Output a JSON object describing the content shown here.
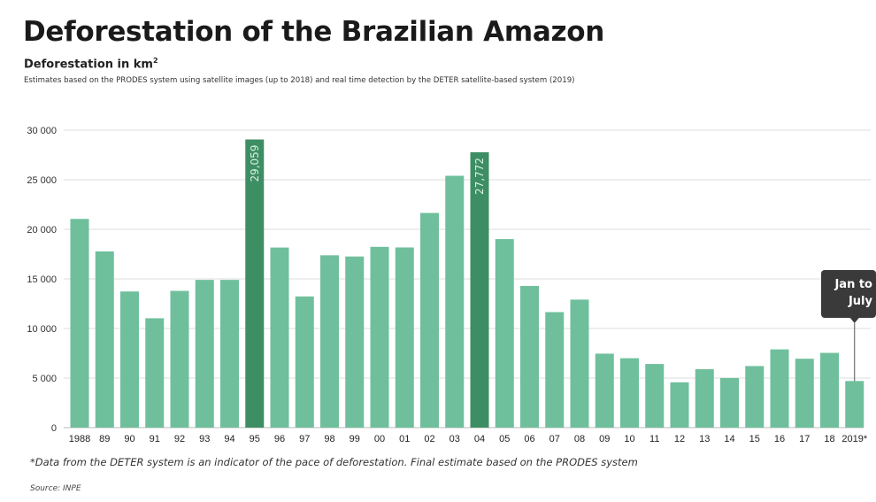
{
  "title": "Deforestation of the Brazilian Amazon",
  "subtitle": "Deforestation in km",
  "subtitle_unit_sup": "2",
  "description": "Estimates based on the PRODES system using satellite images (up to 2018) and real time detection by the DETER satellite-based system (2019)",
  "footnote": "*Data from the DETER system is an indicator of the pace of deforestation. Final estimate based on the PRODES system",
  "source": "Source: INPE",
  "colors": {
    "bar": "#6fbf9c",
    "highlight": "#3e8e63",
    "grid": "#dddddd",
    "callout_bg": "#3a3a3a"
  },
  "chart_data": {
    "type": "bar",
    "categories": [
      "1988",
      "89",
      "90",
      "91",
      "92",
      "93",
      "94",
      "95",
      "96",
      "97",
      "98",
      "99",
      "00",
      "01",
      "02",
      "03",
      "04",
      "05",
      "06",
      "07",
      "08",
      "09",
      "10",
      "11",
      "12",
      "13",
      "14",
      "15",
      "16",
      "17",
      "18",
      "2019*"
    ],
    "values": [
      21050,
      17770,
      13730,
      11030,
      13790,
      14900,
      14900,
      29059,
      18160,
      13230,
      17380,
      17260,
      18230,
      18170,
      21650,
      25400,
      27772,
      19010,
      14290,
      11650,
      12910,
      7460,
      7000,
      6420,
      4570,
      5890,
      5010,
      6210,
      7890,
      6950,
      7540,
      4700
    ],
    "highlighted": [
      "95",
      "04"
    ],
    "data_labels": [
      {
        "category": "95",
        "label": "29,059"
      },
      {
        "category": "04",
        "label": "27,772"
      }
    ],
    "y_ticks": [
      0,
      5000,
      10000,
      15000,
      20000,
      25000,
      30000
    ],
    "y_tick_labels": [
      "0",
      "5 000",
      "10 000",
      "15 000",
      "20 000",
      "25 000",
      "30 000"
    ],
    "ylim": [
      0,
      30000
    ],
    "grid": true,
    "annotation": {
      "category": "2019*",
      "lines": [
        "Jan to",
        "July"
      ]
    }
  }
}
